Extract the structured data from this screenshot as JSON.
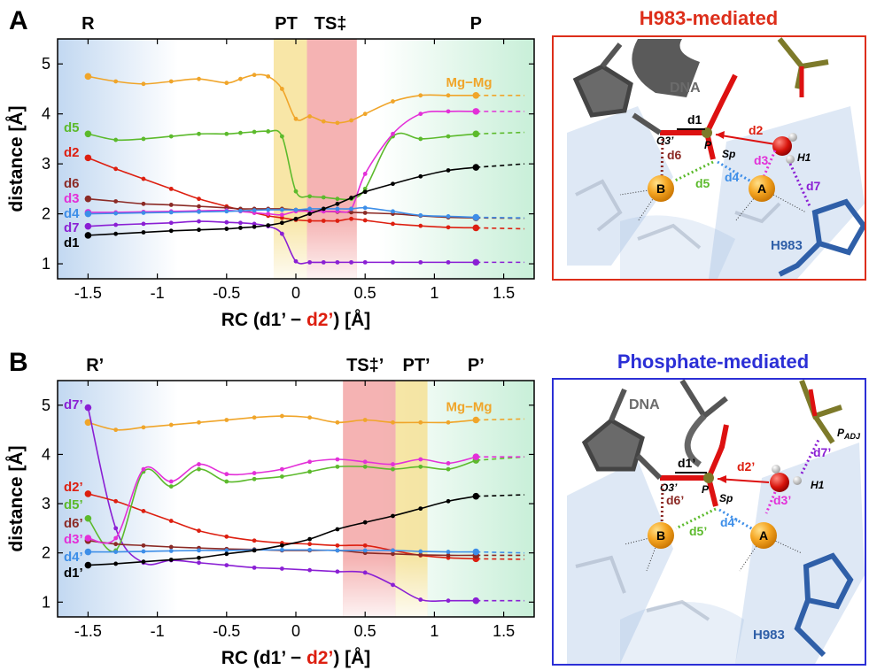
{
  "colors": {
    "d1": "#000000",
    "d2": "#dd1f10",
    "d3": "#e330d8",
    "d4": "#3d8ee8",
    "d5": "#5cba2c",
    "d6": "#8b2a25",
    "d7": "#8a1fd4",
    "mgmg": "#f0a52a",
    "title_a": "#dd2e1a",
    "title_b": "#2b2fd6",
    "ts_band": "#ee8080",
    "pt_band": "#f6dd8a",
    "react_bg": "#c9ddf3",
    "prod_bg": "#c8efd8"
  },
  "chart_data": [
    {
      "type": "line",
      "panel": "A",
      "xlabel_parts": [
        "RC (d1’ − ",
        "d2’",
        ") [Å]"
      ],
      "ylabel": "distance [Å]",
      "xlim": [
        -1.72,
        1.72
      ],
      "ylim": [
        0.7,
        5.5
      ],
      "xticks": [
        -1.5,
        -1,
        -0.5,
        0,
        0.5,
        1,
        1.5
      ],
      "yticks": [
        1,
        2,
        3,
        4,
        5
      ],
      "stages": [
        {
          "label": "R",
          "x": -1.5
        },
        {
          "label": "PT",
          "x": -0.07
        },
        {
          "label": "TS‡",
          "x": 0.25
        },
        {
          "label": "P",
          "x": 1.3
        }
      ],
      "bands": [
        {
          "kind": "pt",
          "from": -0.16,
          "to": 0.08
        },
        {
          "kind": "ts",
          "from": 0.08,
          "to": 0.44
        }
      ],
      "x": [
        -1.5,
        -1.3,
        -1.1,
        -0.9,
        -0.7,
        -0.5,
        -0.4,
        -0.3,
        -0.2,
        -0.1,
        0,
        0.1,
        0.2,
        0.3,
        0.4,
        0.5,
        0.7,
        0.9,
        1.1,
        1.3
      ],
      "extension": {
        "x_from": 1.3,
        "x_to": 1.65
      },
      "series": [
        {
          "name": "Mg−Mg",
          "key": "mgmg",
          "label_pos": "right",
          "values": [
            4.75,
            4.65,
            4.6,
            4.65,
            4.7,
            4.62,
            4.7,
            4.78,
            4.75,
            4.5,
            3.9,
            3.95,
            3.85,
            3.82,
            3.87,
            4.0,
            4.25,
            4.37,
            4.37,
            4.37
          ],
          "ext_end": 4.37
        },
        {
          "name": "d5",
          "key": "d5",
          "values": [
            3.6,
            3.48,
            3.5,
            3.55,
            3.6,
            3.6,
            3.62,
            3.64,
            3.65,
            3.55,
            2.45,
            2.35,
            2.33,
            2.3,
            2.3,
            2.5,
            3.55,
            3.5,
            3.55,
            3.6
          ],
          "ext_end": 3.63
        },
        {
          "name": "d2",
          "key": "d2",
          "values": [
            3.12,
            2.9,
            2.7,
            2.5,
            2.3,
            2.15,
            2.08,
            2.02,
            1.96,
            1.92,
            1.88,
            1.86,
            1.86,
            1.86,
            1.9,
            1.87,
            1.8,
            1.76,
            1.73,
            1.72
          ],
          "ext_end": 1.7
        },
        {
          "name": "d6",
          "key": "d6",
          "values": [
            2.3,
            2.25,
            2.2,
            2.18,
            2.15,
            2.12,
            2.1,
            2.1,
            2.1,
            2.1,
            2.08,
            2.06,
            2.05,
            2.04,
            2.03,
            2.02,
            2.0,
            1.96,
            1.93,
            1.92
          ],
          "ext_end": 1.91
        },
        {
          "name": "d3",
          "key": "d3",
          "values": [
            2.03,
            2.03,
            2.04,
            2.05,
            2.06,
            2.07,
            2.05,
            2.02,
            2.0,
            1.98,
            2.05,
            2.05,
            2.05,
            2.05,
            2.1,
            2.8,
            3.6,
            4.0,
            4.05,
            4.05
          ],
          "ext_end": 4.05
        },
        {
          "name": "d4",
          "key": "d4",
          "values": [
            2.0,
            2.01,
            2.02,
            2.03,
            2.04,
            2.05,
            2.06,
            2.07,
            2.08,
            2.08,
            2.08,
            2.1,
            2.1,
            2.1,
            2.1,
            2.12,
            2.05,
            1.97,
            1.95,
            1.93
          ],
          "ext_end": 1.92
        },
        {
          "name": "d7",
          "key": "d7",
          "values": [
            1.75,
            1.78,
            1.8,
            1.82,
            1.85,
            1.83,
            1.82,
            1.8,
            1.75,
            1.6,
            1.05,
            1.03,
            1.03,
            1.03,
            1.03,
            1.03,
            1.03,
            1.03,
            1.03,
            1.03
          ],
          "ext_end": 1.03
        },
        {
          "name": "d1",
          "key": "d1",
          "values": [
            1.57,
            1.6,
            1.63,
            1.66,
            1.68,
            1.7,
            1.72,
            1.74,
            1.77,
            1.82,
            1.9,
            2.0,
            2.1,
            2.2,
            2.32,
            2.44,
            2.6,
            2.75,
            2.87,
            2.93
          ],
          "ext_end": 3.0
        }
      ]
    },
    {
      "type": "line",
      "panel": "B",
      "xlabel_parts": [
        "RC (d1’ − ",
        "d2’",
        ") [Å]"
      ],
      "ylabel": "distance [Å]",
      "xlim": [
        -1.72,
        1.72
      ],
      "ylim": [
        0.7,
        5.5
      ],
      "xticks": [
        -1.5,
        -1,
        -0.5,
        0,
        0.5,
        1,
        1.5
      ],
      "yticks": [
        1,
        2,
        3,
        4,
        5
      ],
      "stages": [
        {
          "label": "R’",
          "x": -1.45
        },
        {
          "label": "TS‡’",
          "x": 0.5
        },
        {
          "label": "PT’",
          "x": 0.87
        },
        {
          "label": "P’",
          "x": 1.3
        }
      ],
      "bands": [
        {
          "kind": "ts",
          "from": 0.34,
          "to": 0.72
        },
        {
          "kind": "pt",
          "from": 0.72,
          "to": 0.95
        }
      ],
      "x": [
        -1.5,
        -1.3,
        -1.1,
        -0.9,
        -0.7,
        -0.5,
        -0.3,
        -0.1,
        0.1,
        0.3,
        0.5,
        0.7,
        0.9,
        1.1,
        1.3
      ],
      "extension": {
        "x_from": 1.3,
        "x_to": 1.65
      },
      "series": [
        {
          "name": "Mg−Mg",
          "key": "mgmg",
          "label_pos": "right",
          "values": [
            4.65,
            4.5,
            4.55,
            4.6,
            4.65,
            4.7,
            4.75,
            4.78,
            4.75,
            4.65,
            4.7,
            4.65,
            4.65,
            4.65,
            4.7
          ],
          "ext_end": 4.72
        },
        {
          "name": "d7’",
          "key": "d7",
          "values": [
            4.95,
            2.5,
            1.8,
            1.85,
            1.8,
            1.75,
            1.7,
            1.68,
            1.65,
            1.62,
            1.6,
            1.35,
            1.05,
            1.03,
            1.03
          ],
          "ext_end": 1.03
        },
        {
          "name": "d2’",
          "key": "d2",
          "values": [
            3.2,
            3.05,
            2.85,
            2.65,
            2.45,
            2.33,
            2.25,
            2.2,
            2.18,
            2.15,
            2.15,
            2.05,
            1.95,
            1.9,
            1.88
          ],
          "ext_end": 1.87
        },
        {
          "name": "d5’",
          "key": "d5",
          "values": [
            2.7,
            2.05,
            3.65,
            3.35,
            3.7,
            3.45,
            3.5,
            3.55,
            3.65,
            3.75,
            3.75,
            3.7,
            3.75,
            3.7,
            3.88
          ],
          "ext_end": 3.95
        },
        {
          "name": "d6’",
          "key": "d6",
          "values": [
            2.25,
            2.18,
            2.15,
            2.12,
            2.1,
            2.08,
            2.07,
            2.05,
            2.05,
            2.05,
            2.0,
            1.98,
            1.96,
            1.95,
            1.95
          ],
          "ext_end": 1.95
        },
        {
          "name": "d3’",
          "key": "d3",
          "values": [
            2.3,
            2.3,
            3.7,
            3.45,
            3.8,
            3.6,
            3.62,
            3.7,
            3.85,
            3.9,
            3.85,
            3.8,
            3.9,
            3.82,
            3.95
          ],
          "ext_end": 3.95
        },
        {
          "name": "d4’",
          "key": "d4",
          "values": [
            2.02,
            2.02,
            2.03,
            2.04,
            2.05,
            2.05,
            2.06,
            2.06,
            2.06,
            2.05,
            2.05,
            2.05,
            2.03,
            2.02,
            2.02
          ],
          "ext_end": 2.0
        },
        {
          "name": "d1’",
          "key": "d1",
          "values": [
            1.75,
            1.78,
            1.82,
            1.86,
            1.9,
            1.98,
            2.05,
            2.15,
            2.28,
            2.48,
            2.62,
            2.75,
            2.9,
            3.05,
            3.15
          ],
          "ext_end": 3.18
        }
      ]
    }
  ],
  "molecules": [
    {
      "panel": "A",
      "title": "H983-mediated",
      "labels": {
        "dna": "DNA",
        "d1": "d1",
        "d2": "d2",
        "d3": "d3",
        "d4": "d4",
        "d5": "d5",
        "d6": "d6",
        "d7": "d7",
        "o3": "O3’",
        "p": "P",
        "sp": "Sp",
        "h1": "H1",
        "metal_b": "B",
        "metal_a": "A",
        "his": "H983"
      }
    },
    {
      "panel": "B",
      "title": "Phosphate-mediated",
      "labels": {
        "dna": "DNA",
        "d1": "d1’",
        "d2": "d2’",
        "d3": "d3’",
        "d4": "d4’",
        "d5": "d5’",
        "d6": "d6’",
        "d7": "d7’",
        "o3": "O3’",
        "p": "P",
        "sp": "Sp",
        "h1": "H1",
        "metal_b": "B",
        "metal_a": "A",
        "his": "H983",
        "padj": "P",
        "padj_sub": "ADJ"
      }
    }
  ]
}
